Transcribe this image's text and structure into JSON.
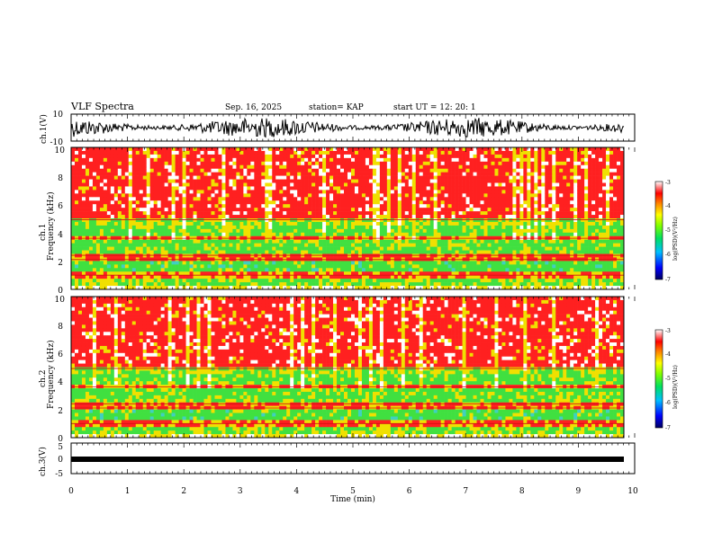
{
  "header": {
    "title": "VLF Spectra",
    "date": "Sep. 16, 2025",
    "station": "station= KAP",
    "start": "start  UT  =   12: 20: 1"
  },
  "chart_data": [
    {
      "type": "line",
      "name": "ch1-waveform",
      "ylabel": "ch.1(V)",
      "ylim": [
        -10,
        10
      ],
      "y_ticks": [
        "10",
        "-10"
      ],
      "xlim": [
        0,
        10
      ]
    },
    {
      "type": "heatmap",
      "name": "ch1-spectrogram",
      "ylabel_line1": "ch.1",
      "ylabel_line2": "Frequency  (kHz)",
      "ylim": [
        0,
        10
      ],
      "y_ticks": [
        "0",
        "2",
        "4",
        "6",
        "8",
        "10"
      ],
      "xlim": [
        0,
        10
      ],
      "colorbar": {
        "label": "log(PSD)(V²/Hz)",
        "range": [
          -7,
          -3
        ],
        "ticks": [
          "-3",
          "-4",
          "-5",
          "-6",
          "-7"
        ]
      }
    },
    {
      "type": "heatmap",
      "name": "ch2-spectrogram",
      "ylabel_line1": "ch.2",
      "ylabel_line2": "Frequency  (kHz)",
      "ylim": [
        0,
        10
      ],
      "y_ticks": [
        "0",
        "2",
        "4",
        "6",
        "8",
        "10"
      ],
      "xlim": [
        0,
        10
      ],
      "colorbar": {
        "label": "log(PSD)(V²/Hz)",
        "range": [
          -7,
          -3
        ],
        "ticks": [
          "-3",
          "-4",
          "-5",
          "-6",
          "-7"
        ]
      }
    },
    {
      "type": "line",
      "name": "ch3-waveform",
      "ylabel": "ch.3(V)",
      "ylim": [
        -5,
        5
      ],
      "y_ticks": [
        "5",
        "0",
        "-5"
      ],
      "xlim": [
        0,
        10
      ],
      "xlabel": "Time  (min)",
      "x_ticks": [
        "0",
        "1",
        "2",
        "3",
        "4",
        "5",
        "6",
        "7",
        "8",
        "9",
        "10"
      ]
    }
  ],
  "colors": {
    "red": "#ff2020",
    "yellow": "#f0e000",
    "green": "#40e040",
    "cyan": "#40d0c0",
    "white": "#ffffff"
  }
}
